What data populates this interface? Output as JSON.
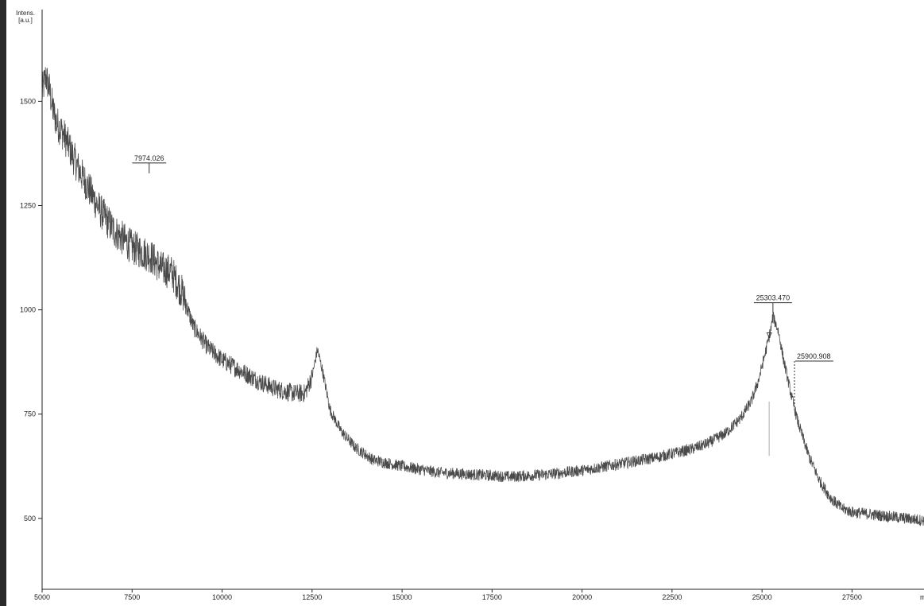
{
  "chart_data": {
    "type": "line",
    "ylabel_lines": [
      "Intens.",
      "[a.u.]"
    ],
    "xlabel_fragment": "m",
    "xlim": [
      5000,
      29500
    ],
    "ylim": [
      330,
      1720
    ],
    "x_ticks": [
      5000,
      7500,
      10000,
      12500,
      15000,
      17500,
      20000,
      22500,
      25000,
      27500
    ],
    "y_ticks": [
      500,
      750,
      1000,
      1250,
      1500
    ],
    "grid": false,
    "series": [
      {
        "color": "#4a4a4a",
        "x": [
          5000,
          5100,
          5200,
          5300,
          5400,
          5600,
          5800,
          6000,
          6300,
          6600,
          7000,
          7500,
          8000,
          8300,
          8600,
          8900,
          9200,
          9600,
          10000,
          10500,
          11000,
          11500,
          12000,
          12300,
          12500,
          12650,
          12800,
          13000,
          13300,
          13700,
          14200,
          15000,
          16000,
          17000,
          18000,
          19000,
          20000,
          21000,
          22000,
          23000,
          23500,
          24000,
          24400,
          24700,
          24900,
          25100,
          25250,
          25303,
          25450,
          25600,
          25800,
          26000,
          26300,
          26600,
          26900,
          27200,
          27500,
          28000,
          28500,
          29000,
          29500
        ],
        "y": [
          1520,
          1560,
          1530,
          1480,
          1450,
          1420,
          1380,
          1340,
          1290,
          1240,
          1190,
          1150,
          1130,
          1100,
          1090,
          1040,
          960,
          910,
          880,
          855,
          830,
          810,
          800,
          800,
          840,
          905,
          850,
          760,
          710,
          670,
          640,
          625,
          610,
          605,
          600,
          605,
          615,
          630,
          645,
          665,
          680,
          705,
          740,
          780,
          830,
          900,
          955,
          985,
          950,
          880,
          800,
          730,
          650,
          590,
          550,
          525,
          515,
          510,
          505,
          500,
          495
        ]
      }
    ],
    "annotations": [
      {
        "x": 7974.026,
        "label": "7974.026",
        "peak_y": 1335
      },
      {
        "x": 25303.47,
        "label": "25303.470",
        "peak_y": 1000
      },
      {
        "x": 25900.908,
        "label": "25900.908",
        "peak_y": 860
      }
    ]
  }
}
